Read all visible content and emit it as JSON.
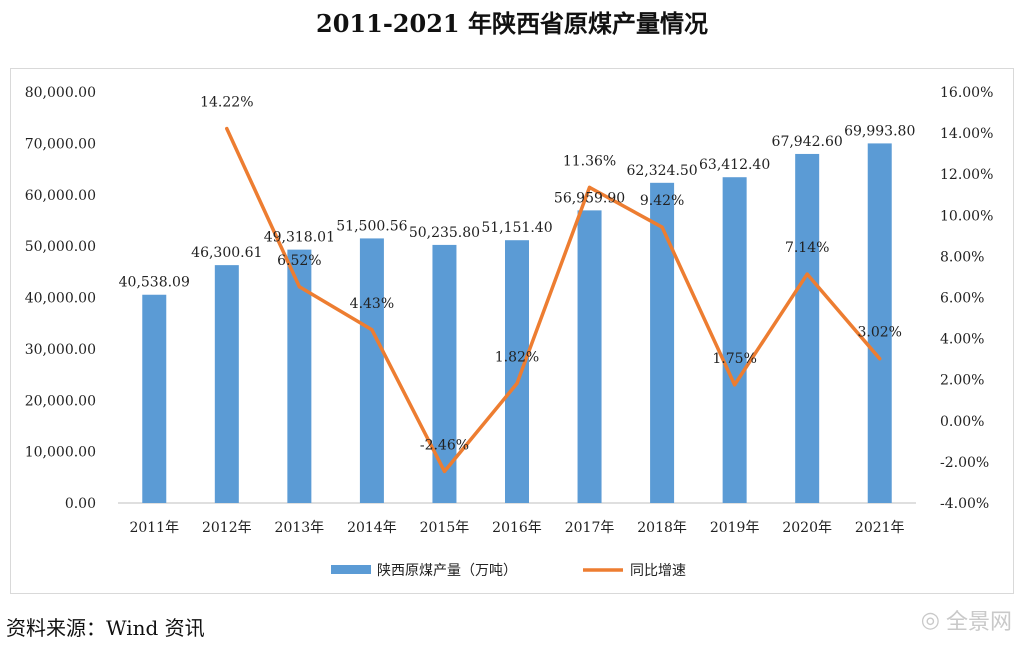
{
  "chart_data": {
    "type": "bar+line",
    "title": "2011-2021 年陕西省原煤产量情况",
    "categories": [
      "2011年",
      "2012年",
      "2013年",
      "2014年",
      "2015年",
      "2016年",
      "2017年",
      "2018年",
      "2019年",
      "2020年",
      "2021年"
    ],
    "series": [
      {
        "name": "陕西原煤产量（万吨）",
        "type": "bar",
        "axis": "left",
        "color": "#5b9bd5",
        "values": [
          40538.09,
          46300.61,
          49318.01,
          51500.56,
          50235.8,
          51151.4,
          56959.9,
          62324.5,
          63412.4,
          67942.6,
          69993.8
        ],
        "labels": [
          "40,538.09",
          "46,300.61",
          "49,318.01",
          "51,500.56",
          "50,235.80",
          "51,151.40",
          "56,959.90",
          "62,324.50",
          "63,412.40",
          "67,942.60",
          "69,993.80"
        ]
      },
      {
        "name": "同比增速",
        "type": "line",
        "axis": "right",
        "color": "#ed7d31",
        "values": [
          null,
          14.22,
          6.52,
          4.43,
          -2.46,
          1.82,
          11.36,
          9.42,
          1.75,
          7.14,
          3.02
        ],
        "labels": [
          null,
          "14.22%",
          "6.52%",
          "4.43%",
          "-2.46%",
          "1.82%",
          "11.36%",
          "9.42%",
          "1.75%",
          "7.14%",
          "3.02%"
        ]
      }
    ],
    "y_left": {
      "range": [
        0,
        80000
      ],
      "ticks": [
        0,
        10000,
        20000,
        30000,
        40000,
        50000,
        60000,
        70000,
        80000
      ],
      "tick_labels": [
        "0.00",
        "10,000.00",
        "20,000.00",
        "30,000.00",
        "40,000.00",
        "50,000.00",
        "60,000.00",
        "70,000.00",
        "80,000.00"
      ]
    },
    "y_right": {
      "range": [
        -4,
        16
      ],
      "ticks": [
        -4,
        -2,
        0,
        2,
        4,
        6,
        8,
        10,
        12,
        14,
        16
      ],
      "tick_labels": [
        "-4.00%",
        "-2.00%",
        "0.00%",
        "2.00%",
        "4.00%",
        "6.00%",
        "8.00%",
        "10.00%",
        "12.00%",
        "14.00%",
        "16.00%"
      ]
    },
    "grid": false,
    "legend_position": "bottom"
  },
  "footer": {
    "source": "资料来源：Wind 资讯",
    "watermark": "全景网"
  }
}
